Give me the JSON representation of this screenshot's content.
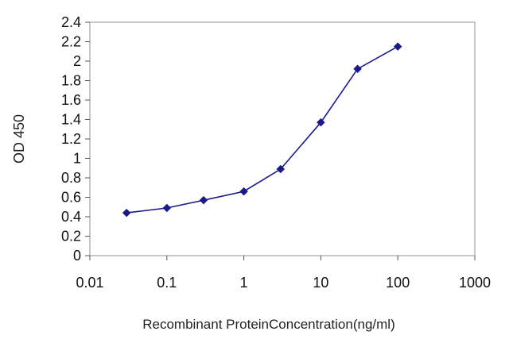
{
  "chart_data": {
    "type": "line",
    "title": "",
    "xlabel": "Recombinant ProteinConcentration(ng/ml)",
    "ylabel": "OD 450",
    "x_scale": "log",
    "xlim": [
      0.01,
      1000
    ],
    "ylim": [
      0,
      2.4
    ],
    "x_ticks": [
      "0.01",
      "0.1",
      "1",
      "10",
      "100",
      "1000"
    ],
    "y_ticks": [
      "0",
      "0.2",
      "0.4",
      "0.6",
      "0.8",
      "1",
      "1.2",
      "1.4",
      "1.6",
      "1.8",
      "2",
      "2.2",
      "2.4"
    ],
    "grid": false,
    "legend": "none",
    "series": [
      {
        "color": "#1a1a8c",
        "marker": "diamond",
        "x": [
          0.03,
          0.1,
          0.3,
          1,
          3,
          10,
          30,
          100
        ],
        "y": [
          0.44,
          0.49,
          0.57,
          0.66,
          0.89,
          1.37,
          1.92,
          2.15
        ]
      }
    ]
  }
}
